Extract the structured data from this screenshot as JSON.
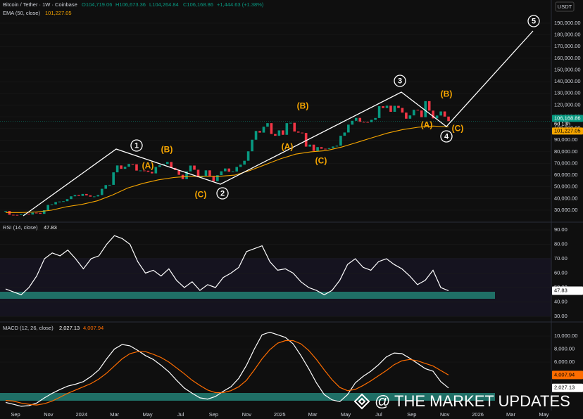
{
  "header": {
    "symbol": "Bitcoin / Tether · 1W · Coinbase",
    "open": "O104,719.06",
    "high": "H106,673.36",
    "low": "L104,264.84",
    "close": "C106,168.86",
    "change": "+1,444.63 (+1.38%)",
    "currency": "USDT"
  },
  "watermark": "@ THE MARKET UPDATES",
  "time_axis": [
    "Sep",
    "Nov",
    "2024",
    "Mar",
    "May",
    "Jul",
    "Sep",
    "Nov",
    "2025",
    "Mar",
    "May",
    "Jul",
    "Sep",
    "Nov",
    "2026",
    "Mar",
    "May"
  ],
  "chart_data": [
    {
      "type": "candlestick",
      "up_color": "#089981",
      "down_color": "#f23645",
      "grid": true,
      "close": [
        29400,
        26100,
        26000,
        25900,
        26500,
        26900,
        26300,
        27900,
        27700,
        26900,
        30000,
        34500,
        35000,
        37000,
        37400,
        37700,
        39500,
        41900,
        43000,
        42200,
        43900,
        42700,
        41600,
        41800,
        43000,
        48300,
        51500,
        51700,
        62400,
        68300,
        65400,
        67200,
        69600,
        69300,
        63900,
        64000,
        63800,
        62800,
        61500,
        67000,
        68400,
        69500,
        71300,
        66200,
        64300,
        60300,
        56600,
        63200,
        68200,
        64600,
        58200,
        59400,
        64100,
        58800,
        54800,
        60000,
        63300,
        65700,
        62900,
        63100,
        67000,
        69000,
        72300,
        80400,
        90300,
        97800,
        96400,
        101400,
        104500,
        95200,
        93700,
        98300,
        94500,
        104500,
        104800,
        97300,
        96400,
        96100,
        84400,
        86100,
        80700,
        84000,
        82600,
        82400,
        83100,
        84500,
        85200,
        93700,
        96500,
        103200,
        106500,
        109000,
        105600,
        105500,
        105300,
        107300,
        108900,
        119000,
        117400,
        119400,
        114200,
        119300,
        117500,
        113500,
        108300,
        111100,
        115900,
        115300,
        109600,
        123300,
        115200,
        108600,
        111000,
        114500,
        110100,
        106168.86
      ],
      "last_price": {
        "value": 106168.86,
        "label": "106,168.86"
      },
      "countdown": "6d 13h",
      "series": [
        {
          "name": "EMA (50, close)",
          "color": "#f7a600",
          "values": [
            28000,
            28000,
            28500,
            30000,
            33000,
            35000,
            38000,
            43000,
            49000,
            53000,
            56000,
            58000,
            59000,
            59000,
            59000,
            60000,
            64000,
            69000,
            74000,
            78000,
            80000,
            81000,
            84000,
            88000,
            92000,
            96000,
            99000,
            101000,
            102000,
            101227.05
          ],
          "last": {
            "value": 101227.05,
            "label": "101,227.05"
          }
        }
      ],
      "ylim": [
        20376,
        209850
      ],
      "yticks": [
        {
          "value": 30000,
          "label": "30,000.00"
        },
        {
          "value": 40000,
          "label": "40,000.00"
        },
        {
          "value": 50000,
          "label": "50,000.00"
        },
        {
          "value": 60000,
          "label": "60,000.00"
        },
        {
          "value": 70000,
          "label": "70,000.00"
        },
        {
          "value": 80000,
          "label": "80,000.00"
        },
        {
          "value": 90000,
          "label": "90,000.00"
        },
        {
          "value": 100000,
          "label": "100,000.00"
        },
        {
          "value": 110000,
          "label": "110,000.00"
        },
        {
          "value": 120000,
          "label": "120,000.00"
        },
        {
          "value": 130000,
          "label": "130,000.00"
        },
        {
          "value": 140000,
          "label": "140,000.00"
        },
        {
          "value": 150000,
          "label": "150,000.00"
        },
        {
          "value": 160000,
          "label": "160,000.00"
        },
        {
          "value": 170000,
          "label": "170,000.00"
        },
        {
          "value": 180000,
          "label": "180,000.00"
        },
        {
          "value": 190000,
          "label": "190,000.00"
        }
      ],
      "annotations": [
        "1",
        "2",
        "3",
        "4",
        "5",
        "(A)",
        "(B)",
        "(C)",
        "(A)",
        "(B)",
        "(C)",
        "(A)",
        "(B)",
        "(C)"
      ]
    },
    {
      "type": "line",
      "title": "RSI (14, close)",
      "grid": true,
      "series": [
        {
          "color": "#ffffff",
          "values": [
            49,
            47,
            45,
            50,
            58,
            70,
            74,
            72,
            76,
            70,
            63,
            70,
            72,
            80,
            86,
            84,
            80,
            68,
            60,
            62,
            58,
            63,
            55,
            50,
            54,
            48,
            52,
            50,
            57,
            60,
            64,
            75,
            77,
            79,
            68,
            62,
            63,
            60,
            54,
            50,
            48,
            45,
            48,
            55,
            66,
            70,
            64,
            62,
            68,
            70,
            66,
            63,
            58,
            52,
            55,
            62,
            50,
            47.83
          ],
          "last": {
            "value": 47.83,
            "label": "47.83"
          }
        }
      ],
      "ylim": [
        27.1,
        94.4
      ],
      "yticks": [
        {
          "value": 30,
          "label": "30.00"
        },
        {
          "value": 40,
          "label": "40.00"
        },
        {
          "value": 50,
          "label": "50.00"
        },
        {
          "value": 60,
          "label": "60.00"
        },
        {
          "value": 70,
          "label": "70.00"
        },
        {
          "value": 80,
          "label": "80.00"
        },
        {
          "value": 90,
          "label": "90.00"
        }
      ]
    },
    {
      "type": "line",
      "title": "MACD (12, 26, close)",
      "grid": true,
      "series": [
        {
          "color": "#ffffff",
          "values": [
            -200,
            -500,
            -800,
            -700,
            -300,
            500,
            1200,
            1800,
            2300,
            2600,
            3000,
            3800,
            4800,
            6500,
            8000,
            8700,
            8500,
            7800,
            7000,
            6400,
            5500,
            4500,
            3200,
            2000,
            1200,
            500,
            300,
            700,
            1500,
            2200,
            3500,
            5500,
            8000,
            10200,
            10600,
            10200,
            9800,
            8800,
            7000,
            5000,
            2800,
            1000,
            200,
            -100,
            1000,
            2800,
            3800,
            4600,
            5600,
            6800,
            7400,
            7300,
            6600,
            5800,
            5000,
            4600,
            3000,
            2027.13
          ],
          "last": {
            "value": 2027.13,
            "label": "2,027.13"
          }
        },
        {
          "color": "#ff6d00",
          "values": [
            100,
            0,
            -300,
            -500,
            -600,
            -400,
            0,
            600,
            1200,
            1700,
            2200,
            2700,
            3400,
            4300,
            5400,
            6500,
            7300,
            7600,
            7600,
            7200,
            6700,
            6000,
            5100,
            4200,
            3200,
            2400,
            1700,
            1300,
            1300,
            1600,
            2200,
            3200,
            4800,
            6500,
            7900,
            8900,
            9300,
            9300,
            8800,
            7800,
            6400,
            4800,
            3300,
            2100,
            1600,
            1800,
            2400,
            3100,
            3900,
            4700,
            5600,
            6200,
            6400,
            6200,
            5800,
            5400,
            4700,
            4007.94
          ],
          "last": {
            "value": 4007.94,
            "label": "4,007.94"
          }
        }
      ],
      "ylim": [
        -1243,
        11946
      ],
      "yticks": [
        {
          "value": 6000,
          "label": "6,000.00"
        },
        {
          "value": 8000,
          "label": "8,000.00"
        },
        {
          "value": 10000,
          "label": "10,000.00"
        }
      ]
    }
  ]
}
